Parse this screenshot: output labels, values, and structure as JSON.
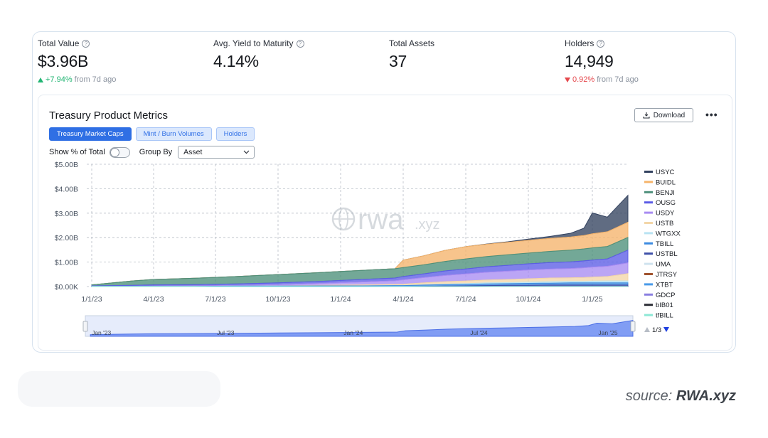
{
  "stats": [
    {
      "label": "Total Value",
      "help": "?",
      "value": "$3.96B",
      "change": "+7.94%",
      "change_suffix": "from 7d ago",
      "direction": "up"
    },
    {
      "label": "Avg. Yield to Maturity",
      "help": "?",
      "value": "4.14%"
    },
    {
      "label": "Total Assets",
      "value": "37"
    },
    {
      "label": "Holders",
      "help": "?",
      "value": "14,949",
      "change": "0.92%",
      "change_suffix": "from 7d ago",
      "direction": "down"
    }
  ],
  "panel": {
    "title": "Treasury Product Metrics",
    "download_label": "Download",
    "more_label": "•••",
    "tabs": [
      "Treasury Market Caps",
      "Mint / Burn Volumes",
      "Holders"
    ],
    "active_tab": 0,
    "show_pct_label": "Show % of Total",
    "group_by_label": "Group By",
    "group_by_value": "Asset",
    "legend_page": "1/3",
    "watermark_main": "rwa",
    "watermark_suffix": ".xyz"
  },
  "chart_data": {
    "type": "area",
    "stacked": true,
    "x": [
      "2023-01-01",
      "2023-03-01",
      "2023-04-01",
      "2023-06-01",
      "2023-08-01",
      "2023-10-01",
      "2023-12-01",
      "2024-01-01",
      "2024-02-01",
      "2024-03-20",
      "2024-04-01",
      "2024-05-01",
      "2024-06-01",
      "2024-07-01",
      "2024-08-01",
      "2024-09-01",
      "2024-10-01",
      "2024-11-01",
      "2024-12-01",
      "2024-12-20",
      "2025-01-01",
      "2025-01-20",
      "2025-02-15"
    ],
    "x_ticks": [
      "1/1/23",
      "4/1/23",
      "7/1/23",
      "10/1/23",
      "1/1/24",
      "4/1/24",
      "7/1/24",
      "10/1/24",
      "1/1/25"
    ],
    "y_ticks": [
      "$0.00K",
      "$1.00B",
      "$2.00B",
      "$3.00B",
      "$4.00B",
      "$5.00B"
    ],
    "ylim": [
      0,
      5
    ],
    "y_unit": "$B",
    "grid": true,
    "legend_position": "right",
    "series": [
      {
        "name": "USYC",
        "color": "#33425f",
        "values": [
          0,
          0,
          0,
          0,
          0,
          0,
          0,
          0,
          0,
          0,
          0,
          0,
          0,
          0,
          0.01,
          0.02,
          0.05,
          0.08,
          0.15,
          0.3,
          0.85,
          0.6,
          1.1
        ]
      },
      {
        "name": "BUIDL",
        "color": "#f5b46b",
        "values": [
          0,
          0,
          0,
          0,
          0,
          0,
          0,
          0,
          0,
          0,
          0.3,
          0.37,
          0.45,
          0.5,
          0.5,
          0.51,
          0.52,
          0.53,
          0.54,
          0.55,
          0.58,
          0.6,
          0.62
        ]
      },
      {
        "name": "BENJI",
        "color": "#4c8f7a",
        "values": [
          0.04,
          0.18,
          0.22,
          0.26,
          0.3,
          0.34,
          0.36,
          0.37,
          0.37,
          0.38,
          0.37,
          0.37,
          0.39,
          0.41,
          0.42,
          0.43,
          0.44,
          0.46,
          0.48,
          0.49,
          0.5,
          0.51,
          0.52
        ]
      },
      {
        "name": "OUSG",
        "color": "#5b5ce6",
        "values": [
          0.02,
          0.04,
          0.05,
          0.05,
          0.06,
          0.07,
          0.08,
          0.09,
          0.1,
          0.11,
          0.13,
          0.15,
          0.18,
          0.2,
          0.22,
          0.24,
          0.25,
          0.26,
          0.27,
          0.28,
          0.28,
          0.3,
          0.52
        ]
      },
      {
        "name": "USDY",
        "color": "#a88cf2",
        "values": [
          0,
          0,
          0.01,
          0.02,
          0.03,
          0.05,
          0.08,
          0.1,
          0.12,
          0.15,
          0.18,
          0.22,
          0.26,
          0.29,
          0.32,
          0.34,
          0.36,
          0.37,
          0.38,
          0.4,
          0.41,
          0.42,
          0.44
        ]
      },
      {
        "name": "USTB",
        "color": "#f3d6a8",
        "values": [
          0,
          0,
          0,
          0,
          0,
          0.01,
          0.02,
          0.03,
          0.04,
          0.05,
          0.06,
          0.08,
          0.1,
          0.11,
          0.12,
          0.13,
          0.14,
          0.15,
          0.15,
          0.16,
          0.17,
          0.18,
          0.3
        ]
      },
      {
        "name": "WTGXX",
        "color": "#b9e3f2",
        "values": [
          0,
          0,
          0,
          0,
          0,
          0,
          0,
          0,
          0,
          0,
          0,
          0.01,
          0.02,
          0.03,
          0.04,
          0.04,
          0.05,
          0.06,
          0.06,
          0.06,
          0.07,
          0.08,
          0.08
        ]
      },
      {
        "name": "TBILL",
        "color": "#3c8be0",
        "values": [
          0.01,
          0.01,
          0.01,
          0.01,
          0.02,
          0.02,
          0.03,
          0.03,
          0.03,
          0.04,
          0.04,
          0.05,
          0.06,
          0.06,
          0.07,
          0.07,
          0.08,
          0.08,
          0.09,
          0.09,
          0.09,
          0.09,
          0.09
        ]
      },
      {
        "name": "USTBL",
        "color": "#3d4fa8",
        "values": [
          0,
          0,
          0,
          0,
          0,
          0,
          0,
          0,
          0,
          0,
          0,
          0.01,
          0.02,
          0.03,
          0.04,
          0.05,
          0.05,
          0.06,
          0.06,
          0.06,
          0.06,
          0.06,
          0.06
        ]
      },
      {
        "name": "UMA",
        "color": "#cfe3ee",
        "values": [
          0,
          0,
          0,
          0,
          0,
          0,
          0,
          0,
          0,
          0,
          0,
          0,
          0,
          0,
          0,
          0,
          0,
          0,
          0,
          0,
          0,
          0,
          0
        ]
      },
      {
        "name": "JTRSY",
        "color": "#a0522d",
        "values": [
          0,
          0,
          0,
          0,
          0,
          0,
          0,
          0,
          0,
          0,
          0,
          0,
          0,
          0,
          0,
          0,
          0,
          0,
          0,
          0,
          0,
          0,
          0
        ]
      },
      {
        "name": "XTBT",
        "color": "#4a9be8",
        "values": [
          0,
          0,
          0,
          0,
          0,
          0,
          0,
          0,
          0,
          0,
          0,
          0,
          0,
          0,
          0,
          0,
          0,
          0,
          0,
          0,
          0,
          0,
          0
        ]
      },
      {
        "name": "GDCP",
        "color": "#8a7fe0",
        "values": [
          0,
          0,
          0,
          0,
          0,
          0,
          0,
          0,
          0,
          0,
          0,
          0,
          0,
          0,
          0,
          0,
          0,
          0,
          0,
          0,
          0,
          0,
          0
        ]
      },
      {
        "name": "bIB01",
        "color": "#2c2e36",
        "values": [
          0,
          0,
          0,
          0,
          0,
          0,
          0,
          0,
          0,
          0,
          0,
          0,
          0,
          0,
          0,
          0,
          0,
          0,
          0,
          0,
          0,
          0,
          0
        ]
      },
      {
        "name": "tfBILL",
        "color": "#8ee8d6",
        "values": [
          0,
          0,
          0,
          0,
          0,
          0,
          0,
          0,
          0,
          0,
          0,
          0,
          0,
          0,
          0,
          0,
          0,
          0,
          0,
          0,
          0,
          0,
          0
        ]
      }
    ],
    "navigator": {
      "labels": [
        "Jan '23",
        "Jul '23",
        "Jan '24",
        "Jul '24",
        "Jan '25"
      ],
      "dates": [
        "2023-01-01",
        "2023-07-01",
        "2024-01-01",
        "2024-07-01",
        "2025-01-01"
      ]
    }
  },
  "source": {
    "prefix": "source: ",
    "name": "RWA.xyz"
  }
}
